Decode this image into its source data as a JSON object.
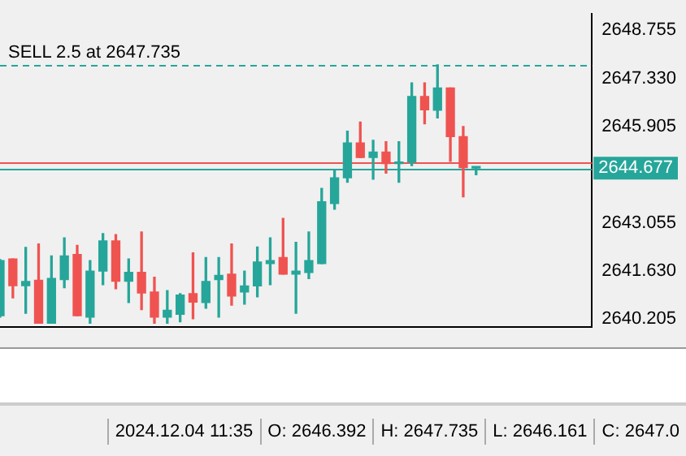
{
  "chart_data": {
    "type": "candlestick",
    "categories": [
      null,
      null,
      null,
      null,
      null,
      null,
      null,
      null,
      null,
      null,
      null,
      null,
      null,
      null,
      null,
      null,
      null,
      null,
      null,
      null,
      null,
      null,
      null,
      null,
      null,
      null,
      null,
      null,
      null,
      null,
      null,
      null,
      null,
      null,
      null,
      null,
      null,
      null,
      null,
      null,
      null,
      null,
      null,
      null,
      null,
      null,
      null
    ],
    "ohlc": [
      [
        2640.31,
        2641.97,
        2640.27,
        2641.94
      ],
      [
        2641.99,
        2641.99,
        2640.84,
        2641.2
      ],
      [
        2641.2,
        2642.33,
        2640.38,
        2641.32
      ],
      [
        2641.36,
        2642.43,
        2640.09,
        2640.09
      ],
      [
        2640.09,
        2642.08,
        2640.09,
        2641.41
      ],
      [
        2641.38,
        2642.61,
        2641.14,
        2642.08
      ],
      [
        2642.12,
        2642.39,
        2640.31,
        2640.31
      ],
      [
        2640.27,
        2641.94,
        2640.09,
        2641.63
      ],
      [
        2641.63,
        2642.74,
        2641.23,
        2642.52
      ],
      [
        2642.52,
        2642.71,
        2641.11,
        2641.33
      ],
      [
        2641.33,
        2641.99,
        2640.7,
        2641.59
      ],
      [
        2641.59,
        2642.79,
        2640.49,
        2640.98
      ],
      [
        2641.01,
        2641.45,
        2640.09,
        2640.27
      ],
      [
        2640.27,
        2641.05,
        2640.09,
        2640.47
      ],
      [
        2640.35,
        2640.96,
        2640.13,
        2640.92
      ],
      [
        2640.96,
        2642.17,
        2640.22,
        2640.71
      ],
      [
        2640.7,
        2642.03,
        2640.53,
        2641.32
      ],
      [
        2641.38,
        2642.03,
        2640.27,
        2641.5
      ],
      [
        2641.54,
        2642.43,
        2640.62,
        2640.89
      ],
      [
        2641.01,
        2641.63,
        2640.65,
        2641.19
      ],
      [
        2641.19,
        2642.34,
        2640.87,
        2641.9
      ],
      [
        2641.85,
        2642.61,
        2641.23,
        2641.94
      ],
      [
        2642.03,
        2643.19,
        2641.54,
        2641.54
      ],
      [
        2641.54,
        2642.48,
        2640.38,
        2641.63
      ],
      [
        2641.59,
        2642.79,
        2641.41,
        2641.94
      ],
      [
        2641.85,
        2644.08,
        2641.85,
        2643.68
      ],
      [
        2643.63,
        2644.61,
        2643.46,
        2644.39
      ],
      [
        2644.39,
        2645.77,
        2644.26,
        2645.42
      ],
      [
        2645.42,
        2646.04,
        2644.99,
        2644.99
      ],
      [
        2644.99,
        2645.5,
        2644.35,
        2645.15
      ],
      [
        2645.15,
        2645.46,
        2644.53,
        2644.81
      ],
      [
        2644.81,
        2645.46,
        2644.26,
        2644.85
      ],
      [
        2644.85,
        2647.2,
        2644.75,
        2646.8
      ],
      [
        2646.8,
        2647.2,
        2645.99,
        2646.4
      ],
      [
        2646.392,
        2647.735,
        2646.161,
        2647.05
      ],
      [
        2647.05,
        2647.05,
        2644.88,
        2645.61
      ],
      [
        2645.61,
        2645.91,
        2643.83,
        2644.69
      ],
      [
        2644.68,
        2644.69,
        2644.48,
        2644.677
      ],
      null,
      null,
      null,
      null,
      null,
      null,
      null,
      null,
      null
    ],
    "colors": [
      "#26a69a",
      "#ef5350",
      "#26a69a",
      "#ef5350",
      "#26a69a",
      "#26a69a",
      "#ef5350",
      "#26a69a",
      "#26a69a",
      "#ef5350",
      "#26a69a",
      "#ef5350",
      "#ef5350",
      "#26a69a",
      "#26a69a",
      "#ef5350",
      "#26a69a",
      "#26a69a",
      "#ef5350",
      "#26a69a",
      "#26a69a",
      "#26a69a",
      "#ef5350",
      "#26a69a",
      "#26a69a",
      "#26a69a",
      "#26a69a",
      "#26a69a",
      "#ef5350",
      "#26a69a",
      "#ef5350",
      "#26a69a",
      "#26a69a",
      "#ef5350",
      "#26a69a",
      "#ef5350",
      "#ef5350",
      "#26a69a",
      null,
      null,
      null,
      null,
      null,
      null,
      null,
      null,
      null
    ],
    "ylim": [
      2639.98,
      2649.24
    ],
    "yticks": [
      {
        "value": 2648.755,
        "label": "2648.755"
      },
      {
        "value": 2647.33,
        "label": "2647.330"
      },
      {
        "value": 2645.905,
        "label": "2645.905"
      },
      {
        "value": 2643.055,
        "label": "2643.055"
      },
      {
        "value": 2641.63,
        "label": "2641.630"
      },
      {
        "value": 2640.205,
        "label": "2640.205"
      }
    ],
    "tick_labels": "y",
    "grid": false,
    "legend": false,
    "ref_lines": [
      {
        "axis": "y",
        "value": 2647.735,
        "label": "SELL 2.5 at 2647.735",
        "color": "#26a69a",
        "line_style": "dashed"
      },
      {
        "axis": "y",
        "value": 2644.85,
        "color": "#ef5350",
        "line_style": "solid"
      },
      {
        "axis": "y",
        "value": 2644.677,
        "label": "2644.677",
        "color": "#26a69a",
        "line_style": "solid"
      }
    ],
    "annotations": [
      "2024.12.04 11:35",
      "O: 2646.392",
      "H: 2647.735",
      "L: 2646.161",
      "C: 2647.0"
    ]
  }
}
